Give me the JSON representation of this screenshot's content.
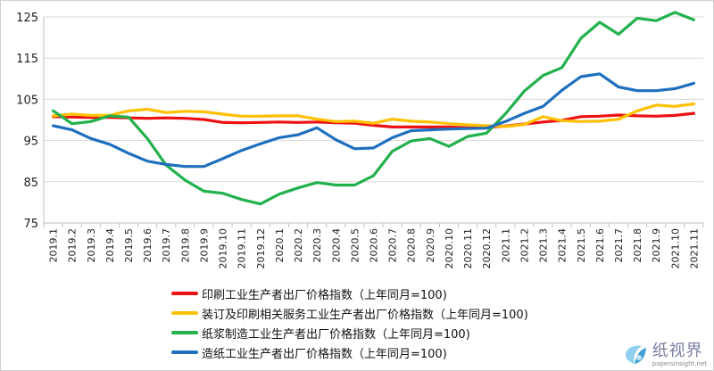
{
  "chart_data": {
    "type": "line",
    "title": "",
    "xlabel": "",
    "ylabel": "",
    "ylim": [
      75,
      125
    ],
    "yticks": [
      "75",
      "85",
      "95",
      "105",
      "115",
      "125"
    ],
    "grid": "horizontal",
    "legend_position": "bottom",
    "categories": [
      "2019.1",
      "2019.2",
      "2019.3",
      "2019.4",
      "2019.5",
      "2019.6",
      "2019.7",
      "2019.8",
      "2019.9",
      "2019.10",
      "2019.11",
      "2019.12",
      "2020.1",
      "2020.2",
      "2020.3",
      "2020.4",
      "2020.5",
      "2020.6",
      "2020.7",
      "2020.8",
      "2020.9",
      "2020.10",
      "2020.11",
      "2020.12",
      "2021.1",
      "2021.2",
      "2021.3",
      "2021.4",
      "2021.5",
      "2021.6",
      "2021.7",
      "2021.8",
      "2021.9",
      "2021.10",
      "2021.11"
    ],
    "series": [
      {
        "name": "印刷工业生产者出厂价格指数（上年同月=100)",
        "color": "#ee1111",
        "values": [
          100.8,
          100.7,
          100.6,
          100.6,
          100.5,
          100.4,
          100.5,
          100.4,
          100.1,
          99.4,
          99.3,
          99.4,
          99.5,
          99.4,
          99.5,
          99.3,
          99.2,
          98.7,
          98.3,
          98.3,
          98.3,
          98.3,
          98.1,
          98.2,
          98.5,
          99.0,
          99.5,
          99.9,
          100.8,
          100.9,
          101.2,
          101.0,
          100.9,
          101.1,
          101.6
        ]
      },
      {
        "name": "装订及印刷相关服务工业生产者出厂价格指数（上年同月=100)",
        "color": "#ffc000",
        "values": [
          101.0,
          101.4,
          101.1,
          101.1,
          102.2,
          102.6,
          101.8,
          102.1,
          102.0,
          101.4,
          100.9,
          100.9,
          101.0,
          101.0,
          100.2,
          99.6,
          99.7,
          99.2,
          100.2,
          99.7,
          99.5,
          99.1,
          98.8,
          98.6,
          98.4,
          98.9,
          100.8,
          99.8,
          99.6,
          99.7,
          100.2,
          102.2,
          103.6,
          103.3,
          103.9
        ]
      },
      {
        "name": "纸浆制造工业生产者出厂价格指数（上年同月=100)",
        "color": "#22b14c",
        "values": [
          102.2,
          99.1,
          99.6,
          101.0,
          100.7,
          95.5,
          89.0,
          85.4,
          82.7,
          82.2,
          80.7,
          79.6,
          82.0,
          83.5,
          84.8,
          84.2,
          84.2,
          86.5,
          92.4,
          94.9,
          95.5,
          93.6,
          96.0,
          96.8,
          101.5,
          107.0,
          110.8,
          112.7,
          119.8,
          123.7,
          120.8,
          124.7,
          124.1,
          126.1,
          124.3
        ]
      },
      {
        "name": "造纸工业生产者出厂价格指数（上年同月=100)",
        "color": "#1f6fbf",
        "values": [
          98.6,
          97.6,
          95.5,
          94.1,
          91.9,
          90.0,
          89.2,
          88.7,
          88.7,
          90.6,
          92.6,
          94.2,
          95.7,
          96.4,
          98.1,
          95.2,
          93.0,
          93.2,
          95.7,
          97.4,
          97.6,
          97.8,
          97.9,
          98.0,
          99.6,
          101.6,
          103.3,
          107.2,
          110.5,
          111.2,
          108.0,
          107.1,
          107.1,
          107.6,
          108.9
        ]
      }
    ]
  },
  "watermark": {
    "name": "纸视界",
    "url": "papersinsight.net"
  }
}
